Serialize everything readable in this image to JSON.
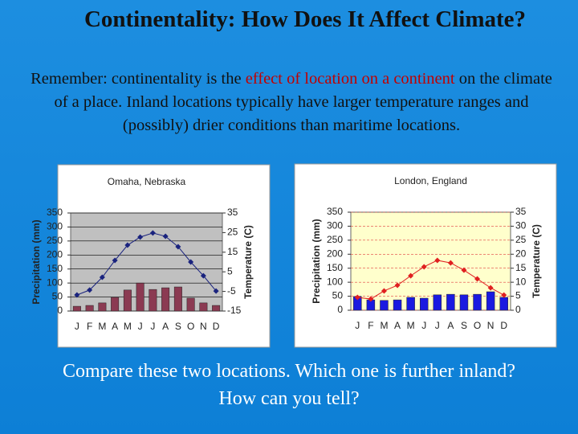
{
  "title": "Continentality: How Does It Affect Climate?",
  "intro": [
    "Remember:  continentality is the ",
    "effect of location on a continent",
    " on the climate of a place. Inland locations typically have larger temperature ranges and (possibly) drier conditions than maritime locations."
  ],
  "question": "Compare these two locations.  Which one is further inland?  How can you tell?",
  "chart_data": [
    {
      "type": "combo",
      "title": "Omaha, Nebraska",
      "ylabel": "Precipitation (mm)",
      "y2label": "Temperature (C)",
      "categories": [
        "J",
        "F",
        "M",
        "A",
        "M",
        "J",
        "J",
        "A",
        "S",
        "O",
        "N",
        "D"
      ],
      "series": [
        {
          "type": "bar",
          "color": "#8b3a52",
          "values": [
            17,
            20,
            29,
            49,
            75,
            100,
            77,
            83,
            86,
            46,
            29,
            20
          ]
        },
        {
          "type": "line",
          "axis": "y2",
          "color": "#1a237e",
          "values": [
            -6.8,
            -4.3,
            2.2,
            10.8,
            18.6,
            22.7,
            24.8,
            23.1,
            17.8,
            10,
            3,
            -4.8
          ]
        }
      ],
      "ylim": [
        0,
        350
      ],
      "yticks": [
        0,
        50,
        100,
        150,
        200,
        250,
        300,
        350
      ],
      "y2lim": [
        -15,
        35
      ],
      "y2ticks": [
        -15,
        -5,
        5,
        15,
        25,
        35
      ],
      "grid": true,
      "grid_color": "#000000",
      "plot_background": "#c0c0c0"
    },
    {
      "type": "combo",
      "title": "London, England",
      "ylabel": "Precipitation (mm)",
      "y2label": "Temperature (C)",
      "categories": [
        "J",
        "F",
        "M",
        "A",
        "M",
        "J",
        "J",
        "A",
        "S",
        "O",
        "N",
        "D"
      ],
      "series": [
        {
          "type": "bar",
          "color": "#1a1ae0",
          "values": [
            49,
            37,
            35,
            37,
            46,
            43,
            55,
            57,
            55,
            57,
            66,
            46
          ]
        },
        {
          "type": "line",
          "axis": "y2",
          "color": "#e02020",
          "values": [
            4.6,
            4,
            6.9,
            8.9,
            12.3,
            15.5,
            17.8,
            16.9,
            14.3,
            11.2,
            8,
            5.4
          ]
        }
      ],
      "ylim": [
        0,
        350
      ],
      "yticks": [
        0,
        50,
        100,
        150,
        200,
        250,
        300,
        350
      ],
      "y2lim": [
        0,
        35
      ],
      "y2ticks": [
        0,
        5,
        10,
        15,
        20,
        25,
        30,
        35
      ],
      "grid": true,
      "grid_color": "#e04040",
      "plot_background": "#ffffcc"
    }
  ]
}
